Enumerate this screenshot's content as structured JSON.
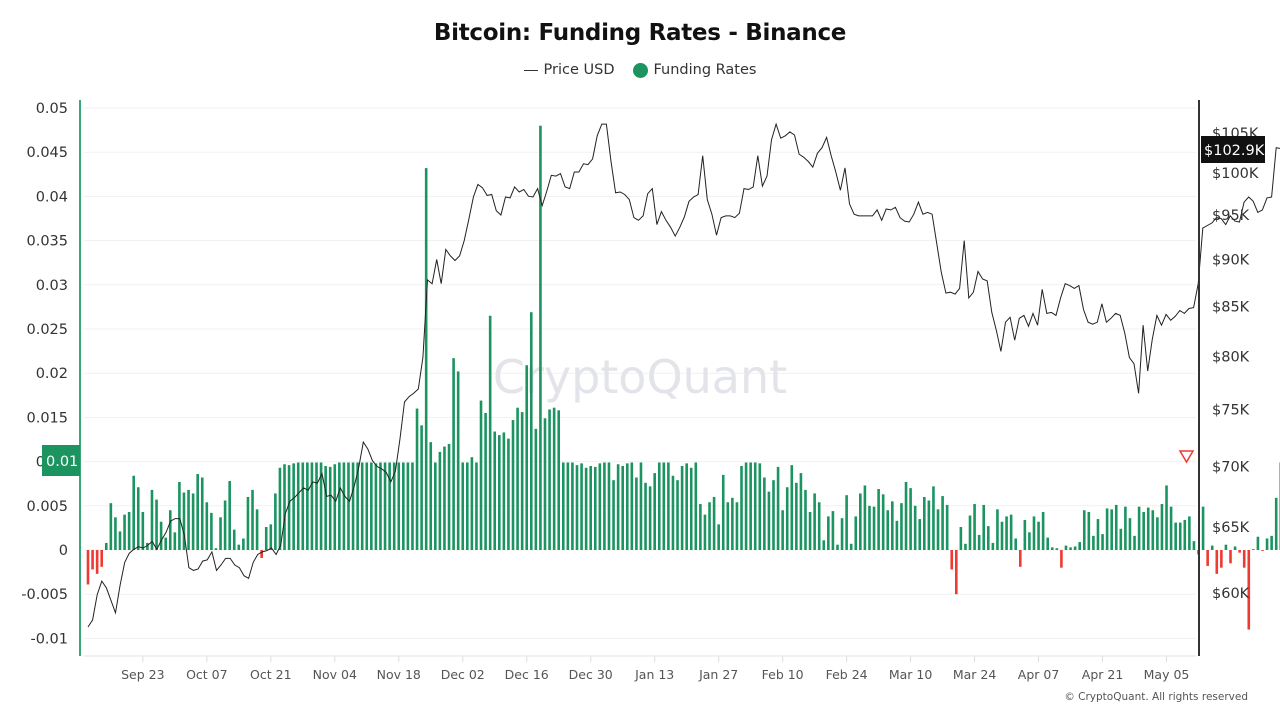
{
  "title": "Bitcoin: Funding Rates - Binance",
  "legend": [
    {
      "label": "Price USD",
      "type": "line",
      "color": "#222222"
    },
    {
      "label": "Funding Rates",
      "type": "dot",
      "color": "#1b9460"
    }
  ],
  "watermark": "CryptoQuant",
  "copyright": "© CryptoQuant. All rights reserved",
  "colors": {
    "positive": "#1b9460",
    "negative": "#ee3a33",
    "price_line": "#222222",
    "left_axis": "#3aa77a",
    "right_axis": "#333333",
    "grid": "#f1f1f1"
  },
  "current_value_badges": {
    "funding": "0.01",
    "price": "$102.9K"
  },
  "chart_data": {
    "type": "bar",
    "title": "Bitcoin: Funding Rates - Binance",
    "xlabel": "",
    "ylabel_left": "Funding Rates",
    "ylabel_right": "Price USD",
    "left_axis": {
      "ticks": [
        "0.05",
        "0.045",
        "0.04",
        "0.035",
        "0.03",
        "0.025",
        "0.02",
        "0.015",
        "0.01",
        "0.005",
        "0",
        "-0.005",
        "-0.01"
      ],
      "range": [
        -0.0115,
        0.0505
      ]
    },
    "right_axis": {
      "scale": "log",
      "ticks": [
        "$105K",
        "$100K",
        "$95K",
        "$90K",
        "$85K",
        "$80K",
        "$75K",
        "$70K",
        "$65K",
        "$60K"
      ]
    },
    "x_ticks": [
      "Sep 23",
      "Oct 07",
      "Oct 21",
      "Nov 04",
      "Nov 18",
      "Dec 02",
      "Dec 16",
      "Dec 30",
      "Jan 13",
      "Jan 27",
      "Feb 10",
      "Feb 24",
      "Mar 10",
      "Mar 24",
      "Apr 07",
      "Apr 21",
      "May 05"
    ],
    "grid": true,
    "legend_position": "top",
    "start_date": "Sep 11",
    "end_date": "May 10",
    "series": [
      {
        "name": "Funding Rates",
        "type": "bar",
        "values": [
          -0.0039,
          -0.0022,
          -0.0027,
          -0.0019,
          0.0008,
          0.0053,
          0.0037,
          0.0021,
          0.004,
          0.0043,
          0.0084,
          0.0071,
          0.0043,
          0.0008,
          0.0068,
          0.0057,
          0.0032,
          0.0014,
          0.0045,
          0.002,
          0.0077,
          0.0065,
          0.0068,
          0.0064,
          0.0086,
          0.0082,
          0.0054,
          0.0042,
          0.0002,
          0.0037,
          0.0056,
          0.0078,
          0.0023,
          0.0006,
          0.0013,
          0.006,
          0.0068,
          0.0046,
          -0.0009,
          0.0026,
          0.0029,
          0.0064,
          0.0093,
          0.0097,
          0.0096,
          0.0098,
          0.0099,
          0.0099,
          0.0099,
          0.0099,
          0.0099,
          0.0099,
          0.0095,
          0.0094,
          0.0097,
          0.0099,
          0.0099,
          0.0099,
          0.0099,
          0.0099,
          0.0099,
          0.0099,
          0.0099,
          0.0098,
          0.0099,
          0.0099,
          0.0099,
          0.0099,
          0.0099,
          0.0099,
          0.0099,
          0.0099,
          0.016,
          0.0141,
          0.0432,
          0.0122,
          0.0099,
          0.0111,
          0.0117,
          0.012,
          0.0217,
          0.0202,
          0.0099,
          0.0099,
          0.0105,
          0.0099,
          0.0169,
          0.0155,
          0.0265,
          0.0134,
          0.013,
          0.0133,
          0.0126,
          0.0147,
          0.0161,
          0.0156,
          0.0209,
          0.0269,
          0.0137,
          0.048,
          0.0149,
          0.0159,
          0.0161,
          0.0158,
          0.0099,
          0.0099,
          0.0099,
          0.0096,
          0.0098,
          0.0093,
          0.0095,
          0.0094,
          0.0098,
          0.0099,
          0.0099,
          0.0079,
          0.0097,
          0.0095,
          0.0098,
          0.0099,
          0.0082,
          0.0099,
          0.0076,
          0.0072,
          0.0087,
          0.0099,
          0.0099,
          0.0099,
          0.0084,
          0.0079,
          0.0095,
          0.0098,
          0.0093,
          0.0099,
          0.0052,
          0.004,
          0.0054,
          0.006,
          0.0029,
          0.0085,
          0.0054,
          0.0059,
          0.0054,
          0.0095,
          0.0099,
          0.0099,
          0.0099,
          0.0098,
          0.0082,
          0.0066,
          0.0079,
          0.0094,
          0.0045,
          0.0071,
          0.0096,
          0.0076,
          0.0087,
          0.0068,
          0.0043,
          0.0064,
          0.0054,
          0.0011,
          0.0038,
          0.0044,
          0.0006,
          0.0036,
          0.0062,
          0.0007,
          0.0038,
          0.0064,
          0.0073,
          0.005,
          0.0049,
          0.0069,
          0.0063,
          0.0045,
          0.0055,
          0.0033,
          0.0053,
          0.0077,
          0.007,
          0.005,
          0.0035,
          0.006,
          0.0056,
          0.0072,
          0.0046,
          0.0061,
          0.0051,
          -0.0022,
          -0.005,
          0.0026,
          0.0007,
          0.0039,
          0.0052,
          0.0017,
          0.0051,
          0.0027,
          0.0008,
          0.0046,
          0.0032,
          0.0038,
          0.004,
          0.0013,
          -0.0019,
          0.0034,
          0.002,
          0.0038,
          0.0032,
          0.0043,
          0.0014,
          0.0003,
          0.0002,
          -0.002,
          0.0005,
          0.0003,
          0.0004,
          0.0009,
          0.0045,
          0.0043,
          0.0016,
          0.0035,
          0.0018,
          0.0047,
          0.0046,
          0.0051,
          0.0024,
          0.0049,
          0.0036,
          0.0016,
          0.0049,
          0.0043,
          0.0048,
          0.0045,
          0.0037,
          0.0052,
          0.0073,
          0.0049,
          0.0031,
          0.0031,
          0.0034,
          0.0038,
          0.001,
          -0.0005,
          0.0049,
          -0.0018,
          0.0005,
          -0.0027,
          -0.002,
          0.0006,
          -0.0015,
          0.0004,
          -0.0003,
          -0.002,
          -0.009,
          0.0001,
          0.0015,
          -0.0001,
          0.0013,
          0.0016,
          0.0059,
          0.0099
        ]
      },
      {
        "name": "Price USD",
        "type": "line",
        "values": [
          57500,
          58000,
          59800,
          60800,
          60300,
          59400,
          58500,
          60500,
          62200,
          62900,
          63200,
          63400,
          63300,
          63500,
          63800,
          63200,
          63900,
          64500,
          65400,
          65600,
          65600,
          64300,
          61800,
          61600,
          61700,
          62300,
          62400,
          63000,
          61600,
          62000,
          62500,
          62500,
          62000,
          61800,
          61200,
          61000,
          62200,
          62800,
          63000,
          63100,
          63300,
          62800,
          63500,
          66000,
          67000,
          67300,
          67700,
          68100,
          67900,
          68600,
          68500,
          69300,
          67400,
          67500,
          67000,
          68100,
          67400,
          67000,
          68200,
          69800,
          72000,
          71400,
          70400,
          69900,
          69700,
          69400,
          68600,
          69500,
          72300,
          75600,
          76100,
          76400,
          76800,
          79800,
          87700,
          87300,
          89900,
          87300,
          91000,
          90300,
          89800,
          90300,
          92000,
          94400,
          97000,
          98500,
          98100,
          97200,
          97300,
          95400,
          94900,
          97000,
          96900,
          98200,
          97600,
          97900,
          97100,
          97000,
          98000,
          96000,
          97700,
          99600,
          99500,
          99800,
          98200,
          98000,
          100000,
          100000,
          101000,
          100900,
          101600,
          104500,
          106000,
          106000,
          101300,
          97500,
          97600,
          97300,
          96700,
          94600,
          94300,
          94800,
          97400,
          98000,
          93800,
          95300,
          94300,
          93500,
          92500,
          93500,
          94700,
          96500,
          97000,
          97300,
          102000,
          96700,
          95000,
          92600,
          94600,
          94800,
          94800,
          94600,
          95100,
          98000,
          97900,
          98200,
          102000,
          98300,
          99500,
          104000,
          106000,
          104200,
          104500,
          105000,
          104600,
          102200,
          101800,
          101300,
          100600,
          102300,
          103000,
          104300,
          102000,
          100000,
          97800,
          100500,
          96200,
          95000,
          94800,
          94800,
          94800,
          94800,
          95500,
          94300,
          95600,
          95500,
          95800,
          94600,
          94200,
          94100,
          95000,
          96400,
          95000,
          95200,
          95000,
          91700,
          88500,
          86300,
          86400,
          86200,
          86800,
          92000,
          85800,
          86400,
          88600,
          87800,
          87600,
          84300,
          82500,
          80400,
          83300,
          83800,
          81500,
          83700,
          84000,
          82900,
          84200,
          83000,
          86700,
          84200,
          84300,
          84000,
          85800,
          87300,
          87100,
          86800,
          87100,
          84600,
          83300,
          83100,
          83300,
          85200,
          83300,
          83700,
          84200,
          84000,
          82200,
          79800,
          79200,
          76400,
          83000,
          78500,
          81600,
          84000,
          83000,
          84100,
          83500,
          83900,
          84500,
          84200,
          84700,
          84800,
          87300,
          93400,
          93700,
          94000,
          94600,
          94500,
          93800,
          94800,
          94200,
          94100,
          96400,
          97000,
          96500,
          95200,
          95500,
          96900,
          97000,
          103000,
          102900
        ]
      }
    ]
  }
}
